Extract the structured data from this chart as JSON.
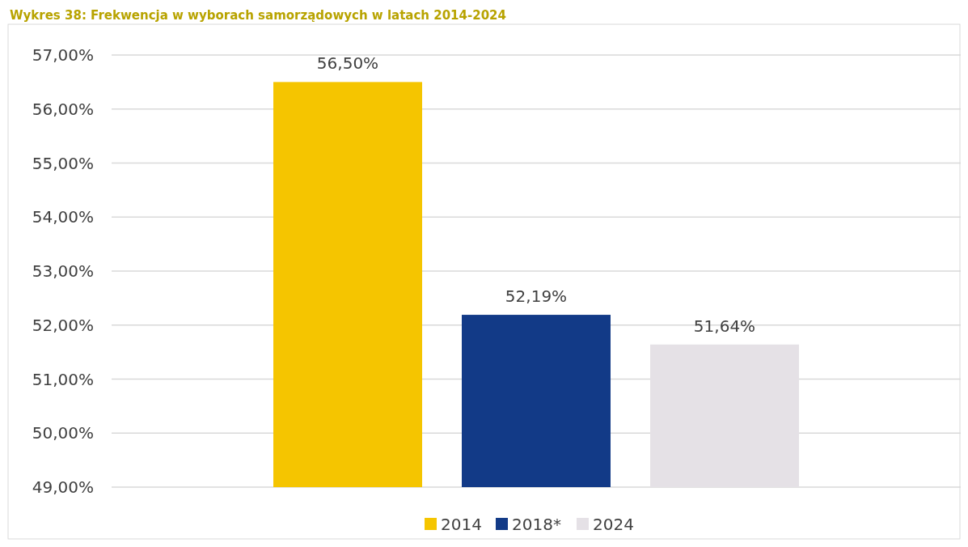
{
  "chart_data": {
    "type": "bar",
    "title": "Wykres 38: Frekwencja w wyborach samorządowych w latach 2014-2024",
    "categories": [
      null
    ],
    "series": [
      {
        "name": "2014",
        "color": "#f5c500",
        "values": [
          56.5
        ],
        "value_labels": [
          "56,50%"
        ]
      },
      {
        "name": "2018*",
        "color": "#123a87",
        "values": [
          52.19
        ],
        "value_labels": [
          "52,19%"
        ]
      },
      {
        "name": "2024",
        "color": "#e5e1e6",
        "values": [
          51.64
        ],
        "value_labels": [
          "51,64%"
        ]
      }
    ],
    "ylim": [
      49,
      57
    ],
    "yticks": [
      {
        "value": 49,
        "label": "49,00%"
      },
      {
        "value": 50,
        "label": "50,00%"
      },
      {
        "value": 51,
        "label": "51,00%"
      },
      {
        "value": 52,
        "label": "52,00%"
      },
      {
        "value": 53,
        "label": "53,00%"
      },
      {
        "value": 54,
        "label": "54,00%"
      },
      {
        "value": 55,
        "label": "55,00%"
      },
      {
        "value": 56,
        "label": "56,00%"
      },
      {
        "value": 57,
        "label": "57,00%"
      }
    ],
    "grid": "y",
    "legend": "bottom"
  }
}
